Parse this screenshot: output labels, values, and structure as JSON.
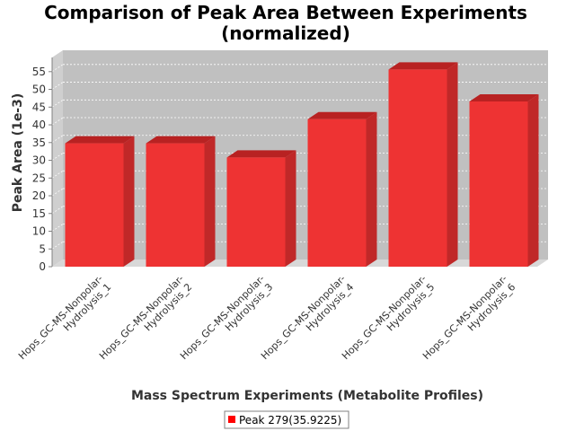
{
  "chart_data": {
    "type": "bar",
    "title_line1": "Comparison of Peak Area Between Experiments",
    "title_line2": "(normalized)",
    "xlabel": "Mass Spectrum Experiments (Metabolite Profiles)",
    "ylabel": "Peak Area (1e-3)",
    "categories": [
      [
        "Hops_GC-MS-Nonpolar-",
        "Hydrolysis_1"
      ],
      [
        "Hops_GC-MS-Nonpolar-",
        "Hydrolysis_2"
      ],
      [
        "Hops_GC-MS-Nonpolar-",
        "Hydrolysis_3"
      ],
      [
        "Hops_GC-MS-Nonpolar-",
        "Hydrolysis_4"
      ],
      [
        "Hops_GC-MS-Nonpolar-",
        "Hydrolysis_5"
      ],
      [
        "Hops_GC-MS-Nonpolar-",
        "Hydrolysis_6"
      ]
    ],
    "series": [
      {
        "name": "Peak 279(35.9225)",
        "values": [
          34.8,
          34.8,
          30.8,
          41.6,
          55.6,
          46.6
        ]
      }
    ],
    "ylim": [
      0,
      59
    ],
    "yticks": [
      "0",
      "5",
      "10",
      "15",
      "20",
      "25",
      "30",
      "35",
      "40",
      "45",
      "50",
      "55"
    ],
    "grid": true,
    "legend_position": "bottom",
    "colors": {
      "bar_front": "#ee3333",
      "bar_top": "#b82222",
      "bar_side": "#c02828",
      "plot_back": "#c0c0c0",
      "plot_floor": "#d8d8d8",
      "legend_swatch": "#ff0000"
    }
  }
}
